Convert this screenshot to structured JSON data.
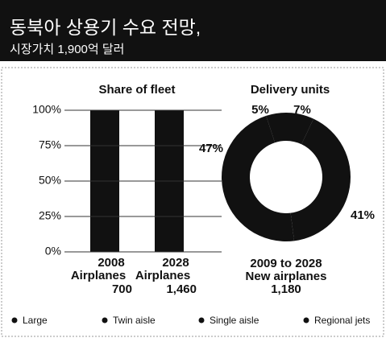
{
  "header": {
    "title": "동북아 상용기 수요 전망,",
    "subtitle": "시장가치 1,900억 달러"
  },
  "chart_data": [
    {
      "type": "bar",
      "title": "Share of fleet",
      "categories": [
        "2008",
        "2028"
      ],
      "category_labels": [
        "Airplanes",
        "Airplanes"
      ],
      "totals": [
        700,
        {
          "value": 1460,
          "label": "1,460"
        }
      ],
      "values": [
        100,
        100
      ],
      "color": "#111111",
      "ylim": [
        0,
        100
      ],
      "yticks": [
        {
          "value": 0,
          "label": "0%"
        },
        {
          "value": 25,
          "label": "25%"
        },
        {
          "value": 50,
          "label": "50%"
        },
        {
          "value": 75,
          "label": "75%"
        },
        {
          "value": 100,
          "label": "100%"
        }
      ],
      "grid": true
    },
    {
      "type": "pie",
      "title": "Delivery units",
      "caption": [
        "2009 to 2028",
        "New airplanes"
      ],
      "total": {
        "value": 1180,
        "label": "1,180"
      },
      "categories": [
        "Large",
        "Twin aisle",
        "Single aisle",
        "Regional jets"
      ],
      "values": [
        7,
        41,
        47,
        5
      ],
      "value_labels": [
        "7%",
        "41%",
        "47%",
        "5%"
      ],
      "color": "#111111"
    }
  ]
}
